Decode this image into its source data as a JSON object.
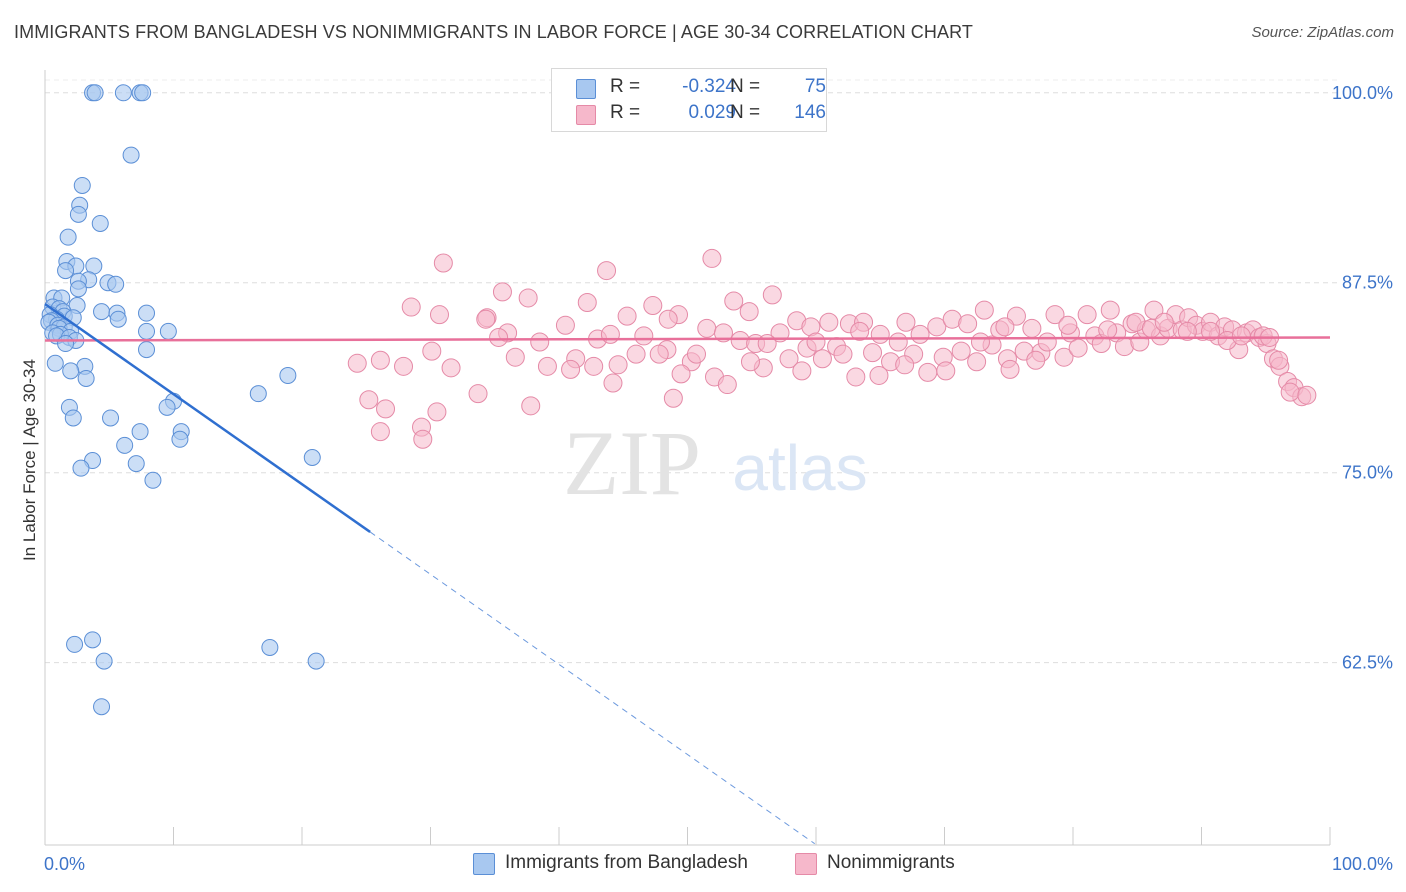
{
  "title": "IMMIGRANTS FROM BANGLADESH VS NONIMMIGRANTS IN LABOR FORCE | AGE 30-34 CORRELATION CHART",
  "source": "Source: ZipAtlas.com",
  "watermark": {
    "zip": "ZIP",
    "atlas": "atlas"
  },
  "legend": {
    "rows": [
      {
        "r_label": "R =",
        "r_value": "-0.324",
        "n_label": "N =",
        "n_value": "75"
      },
      {
        "r_label": "R =",
        "r_value": "0.029",
        "n_label": "N =",
        "n_value": "146"
      }
    ],
    "bottom": [
      "Immigrants from Bangladesh",
      "Nonimmigrants"
    ]
  },
  "colors": {
    "blue_fill": "#a8c8f0",
    "blue_stroke": "#5b8fd6",
    "blue_line": "#2f6fd0",
    "pink_fill": "#f6b8cb",
    "pink_stroke": "#e58aa7",
    "pink_line": "#e8709a",
    "grid": "#dddddd",
    "tick_text": "#3d74c9"
  },
  "chart_data": {
    "type": "scatter",
    "title": "IMMIGRANTS FROM BANGLADESH VS NONIMMIGRANTS IN LABOR FORCE | AGE 30-34 CORRELATION CHART",
    "xlabel": "",
    "ylabel": "In Labor Force | Age 30-34",
    "xlim": [
      0,
      100
    ],
    "ylim": [
      50.5,
      101.5
    ],
    "x_tick_labels": [
      "0.0%",
      "100.0%"
    ],
    "y_ticks": [
      62.5,
      75.0,
      87.5,
      100.0
    ],
    "y_tick_labels": [
      "62.5%",
      "75.0%",
      "87.5%",
      "100.0%"
    ],
    "series": [
      {
        "name": "Immigrants from Bangladesh",
        "R": -0.324,
        "N": 75,
        "trend": {
          "x1": 0,
          "y1": 86.1,
          "x2": 25.3,
          "y2": 71.1,
          "x2_dashed": 59.9
        },
        "points": [
          [
            3.7,
            100.0
          ],
          [
            3.9,
            100.0
          ],
          [
            6.1,
            100.0
          ],
          [
            7.4,
            100.0
          ],
          [
            7.6,
            100.0
          ],
          [
            6.7,
            95.9
          ],
          [
            2.9,
            93.9
          ],
          [
            2.7,
            92.6
          ],
          [
            2.6,
            92.0
          ],
          [
            4.3,
            91.4
          ],
          [
            1.8,
            90.5
          ],
          [
            1.7,
            88.9
          ],
          [
            2.4,
            88.6
          ],
          [
            3.8,
            88.6
          ],
          [
            1.6,
            88.3
          ],
          [
            3.4,
            87.7
          ],
          [
            2.6,
            87.6
          ],
          [
            4.9,
            87.5
          ],
          [
            5.5,
            87.4
          ],
          [
            2.6,
            87.1
          ],
          [
            0.7,
            86.5
          ],
          [
            1.3,
            86.5
          ],
          [
            2.5,
            86.0
          ],
          [
            0.6,
            85.9
          ],
          [
            1.1,
            85.8
          ],
          [
            1.4,
            85.6
          ],
          [
            4.4,
            85.6
          ],
          [
            5.6,
            85.5
          ],
          [
            7.9,
            85.5
          ],
          [
            0.4,
            85.4
          ],
          [
            1.5,
            85.3
          ],
          [
            2.2,
            85.2
          ],
          [
            0.9,
            85.1
          ],
          [
            0.5,
            85.0
          ],
          [
            5.7,
            85.1
          ],
          [
            0.3,
            84.9
          ],
          [
            1.0,
            84.7
          ],
          [
            1.5,
            84.6
          ],
          [
            1.1,
            84.5
          ],
          [
            2.0,
            84.3
          ],
          [
            7.9,
            84.3
          ],
          [
            9.6,
            84.3
          ],
          [
            0.6,
            84.2
          ],
          [
            1.2,
            84.1
          ],
          [
            0.9,
            84.0
          ],
          [
            1.9,
            83.9
          ],
          [
            2.4,
            83.7
          ],
          [
            1.6,
            83.5
          ],
          [
            7.9,
            83.1
          ],
          [
            0.8,
            82.2
          ],
          [
            3.1,
            82.0
          ],
          [
            2.0,
            81.7
          ],
          [
            3.2,
            81.2
          ],
          [
            18.9,
            81.4
          ],
          [
            16.6,
            80.2
          ],
          [
            10.0,
            79.7
          ],
          [
            9.5,
            79.3
          ],
          [
            1.9,
            79.3
          ],
          [
            2.2,
            78.6
          ],
          [
            5.1,
            78.6
          ],
          [
            7.4,
            77.7
          ],
          [
            10.6,
            77.7
          ],
          [
            10.5,
            77.2
          ],
          [
            6.2,
            76.8
          ],
          [
            20.8,
            76.0
          ],
          [
            3.7,
            75.8
          ],
          [
            7.1,
            75.6
          ],
          [
            2.8,
            75.3
          ],
          [
            8.4,
            74.5
          ],
          [
            2.3,
            63.7
          ],
          [
            3.7,
            64.0
          ],
          [
            17.5,
            63.5
          ],
          [
            4.6,
            62.6
          ],
          [
            21.1,
            62.6
          ],
          [
            4.4,
            59.6
          ]
        ]
      },
      {
        "name": "Nonimmigrants",
        "R": 0.029,
        "N": 146,
        "trend": {
          "x1": 0,
          "y1": 83.7,
          "x2": 100,
          "y2": 83.9
        },
        "points": [
          [
            31.0,
            88.8
          ],
          [
            43.7,
            88.3
          ],
          [
            51.9,
            89.1
          ],
          [
            36.0,
            84.2
          ],
          [
            28.5,
            85.9
          ],
          [
            30.7,
            85.4
          ],
          [
            34.4,
            85.2
          ],
          [
            24.3,
            82.2
          ],
          [
            26.1,
            82.4
          ],
          [
            26.5,
            79.2
          ],
          [
            27.9,
            82.0
          ],
          [
            29.3,
            78.0
          ],
          [
            30.1,
            83.0
          ],
          [
            31.6,
            81.9
          ],
          [
            35.6,
            86.9
          ],
          [
            34.3,
            85.1
          ],
          [
            35.3,
            83.9
          ],
          [
            36.6,
            82.6
          ],
          [
            37.6,
            86.5
          ],
          [
            38.5,
            83.6
          ],
          [
            39.1,
            82.0
          ],
          [
            40.5,
            84.7
          ],
          [
            41.3,
            82.5
          ],
          [
            42.2,
            86.2
          ],
          [
            43.0,
            83.8
          ],
          [
            44.0,
            84.1
          ],
          [
            44.6,
            82.1
          ],
          [
            45.3,
            85.3
          ],
          [
            46.0,
            82.8
          ],
          [
            46.6,
            84.0
          ],
          [
            47.3,
            86.0
          ],
          [
            48.4,
            83.1
          ],
          [
            48.9,
            79.9
          ],
          [
            49.3,
            85.4
          ],
          [
            50.3,
            82.3
          ],
          [
            50.7,
            82.8
          ],
          [
            51.5,
            84.5
          ],
          [
            52.1,
            81.3
          ],
          [
            52.8,
            84.2
          ],
          [
            53.6,
            86.3
          ],
          [
            54.1,
            83.7
          ],
          [
            54.8,
            85.6
          ],
          [
            55.3,
            83.5
          ],
          [
            55.9,
            81.9
          ],
          [
            56.6,
            86.7
          ],
          [
            57.2,
            84.2
          ],
          [
            57.9,
            82.5
          ],
          [
            58.5,
            85.0
          ],
          [
            59.3,
            83.2
          ],
          [
            59.6,
            84.6
          ],
          [
            60.5,
            82.5
          ],
          [
            61.0,
            84.9
          ],
          [
            61.6,
            83.3
          ],
          [
            62.6,
            84.8
          ],
          [
            63.1,
            81.3
          ],
          [
            63.7,
            84.9
          ],
          [
            64.4,
            82.9
          ],
          [
            65.0,
            84.1
          ],
          [
            65.8,
            82.3
          ],
          [
            66.4,
            83.6
          ],
          [
            67.0,
            84.9
          ],
          [
            67.6,
            82.8
          ],
          [
            68.1,
            84.1
          ],
          [
            68.7,
            81.6
          ],
          [
            69.4,
            84.6
          ],
          [
            69.9,
            82.6
          ],
          [
            70.6,
            85.1
          ],
          [
            71.3,
            83.0
          ],
          [
            71.8,
            84.8
          ],
          [
            72.5,
            82.3
          ],
          [
            73.1,
            85.7
          ],
          [
            73.7,
            83.4
          ],
          [
            74.3,
            84.4
          ],
          [
            74.9,
            82.5
          ],
          [
            75.6,
            85.3
          ],
          [
            76.2,
            83.0
          ],
          [
            76.8,
            84.5
          ],
          [
            77.5,
            82.9
          ],
          [
            78.0,
            83.6
          ],
          [
            78.6,
            85.4
          ],
          [
            79.3,
            82.6
          ],
          [
            79.8,
            84.2
          ],
          [
            80.4,
            83.2
          ],
          [
            81.1,
            85.4
          ],
          [
            81.7,
            84.0
          ],
          [
            82.2,
            83.5
          ],
          [
            82.9,
            85.7
          ],
          [
            83.4,
            84.2
          ],
          [
            84.0,
            83.3
          ],
          [
            84.6,
            84.8
          ],
          [
            85.2,
            83.6
          ],
          [
            85.7,
            84.4
          ],
          [
            86.3,
            85.7
          ],
          [
            86.8,
            84.0
          ],
          [
            87.4,
            84.5
          ],
          [
            88.0,
            85.4
          ],
          [
            88.5,
            84.4
          ],
          [
            89.0,
            85.2
          ],
          [
            89.6,
            84.7
          ],
          [
            90.1,
            84.3
          ],
          [
            90.7,
            84.9
          ],
          [
            91.3,
            84.0
          ],
          [
            91.8,
            84.6
          ],
          [
            92.4,
            84.4
          ],
          [
            92.9,
            83.1
          ],
          [
            93.5,
            84.2
          ],
          [
            94.0,
            84.4
          ],
          [
            94.5,
            83.9
          ],
          [
            95.1,
            83.5
          ],
          [
            95.6,
            82.5
          ],
          [
            96.1,
            82.0
          ],
          [
            96.7,
            81.0
          ],
          [
            97.2,
            80.6
          ],
          [
            97.8,
            80.0
          ],
          [
            25.2,
            79.8
          ],
          [
            26.1,
            77.7
          ],
          [
            29.4,
            77.2
          ],
          [
            30.5,
            79.0
          ],
          [
            33.7,
            80.2
          ],
          [
            37.8,
            79.4
          ],
          [
            40.9,
            81.8
          ],
          [
            42.7,
            82.0
          ],
          [
            44.2,
            80.9
          ],
          [
            47.8,
            82.8
          ],
          [
            49.5,
            81.5
          ],
          [
            53.1,
            80.8
          ],
          [
            54.9,
            82.3
          ],
          [
            58.9,
            81.7
          ],
          [
            60.0,
            83.6
          ],
          [
            62.1,
            82.8
          ],
          [
            64.9,
            81.4
          ],
          [
            66.9,
            82.1
          ],
          [
            70.1,
            81.7
          ],
          [
            72.8,
            83.6
          ],
          [
            75.1,
            81.8
          ],
          [
            77.1,
            82.4
          ],
          [
            79.6,
            84.7
          ],
          [
            82.7,
            84.4
          ],
          [
            84.9,
            84.9
          ],
          [
            86.1,
            84.5
          ],
          [
            87.1,
            84.9
          ],
          [
            88.9,
            84.3
          ],
          [
            90.7,
            84.3
          ],
          [
            92.0,
            83.7
          ],
          [
            93.1,
            84.0
          ],
          [
            94.8,
            84.0
          ],
          [
            95.3,
            83.9
          ],
          [
            96.0,
            82.4
          ],
          [
            96.9,
            80.3
          ],
          [
            98.2,
            80.1
          ],
          [
            48.5,
            85.1
          ],
          [
            56.2,
            83.5
          ],
          [
            63.4,
            84.3
          ],
          [
            74.7,
            84.6
          ]
        ]
      }
    ]
  }
}
